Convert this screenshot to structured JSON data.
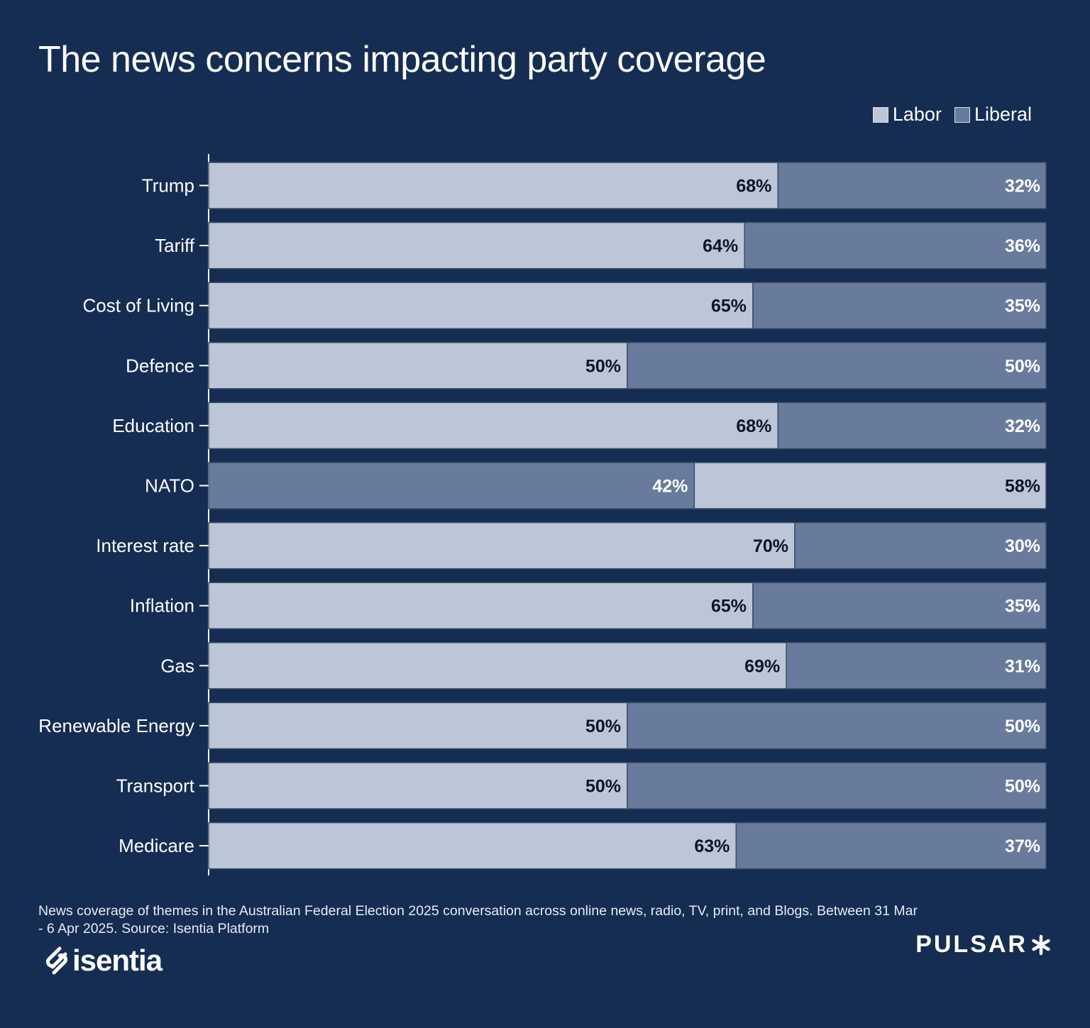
{
  "chart_data": {
    "type": "bar",
    "orientation": "horizontal",
    "stacked": true,
    "title": "The news concerns impacting party coverage",
    "categories": [
      "Trump",
      "Tariff",
      "Cost of Living",
      "Defence",
      "Education",
      "NATO",
      "Interest rate",
      "Inflation",
      "Gas",
      "Renewable Energy",
      "Transport",
      "Medicare"
    ],
    "series": [
      {
        "name": "Labor",
        "values": [
          68,
          64,
          65,
          50,
          68,
          42,
          70,
          65,
          69,
          50,
          50,
          63
        ]
      },
      {
        "name": "Liberal",
        "values": [
          32,
          36,
          35,
          50,
          32,
          58,
          30,
          35,
          31,
          50,
          50,
          37
        ]
      }
    ],
    "data_labels": [
      [
        "68%",
        "32%"
      ],
      [
        "64%",
        "36%"
      ],
      [
        "65%",
        "35%"
      ],
      [
        "50%",
        "50%"
      ],
      [
        "68%",
        "32%"
      ],
      [
        "58%",
        "42%"
      ],
      [
        "70%",
        "30%"
      ],
      [
        "65%",
        "35%"
      ],
      [
        "69%",
        "31%"
      ],
      [
        "50%",
        "50%"
      ],
      [
        "50%",
        "50%"
      ],
      [
        "63%",
        "37%"
      ]
    ],
    "segment_order_note": "NATO row shows Liberal first then Labor",
    "xlim": [
      0,
      100
    ],
    "grid": false,
    "legend_position": "top-right",
    "colors": {
      "Labor": "#bcc6d8",
      "Liberal": "#687b9c",
      "background": "#152d52"
    }
  },
  "legend": {
    "labor_label": "Labor",
    "liberal_label": "Liberal"
  },
  "footer": {
    "note": "News coverage of themes in the Australian Federal Election 2025 conversation across online news, radio, TV, print, and Blogs. Between 31 Mar - 6 Apr 2025. Source: Isentia Platform",
    "brand_left": "isentia",
    "brand_right": "PULSAR"
  }
}
